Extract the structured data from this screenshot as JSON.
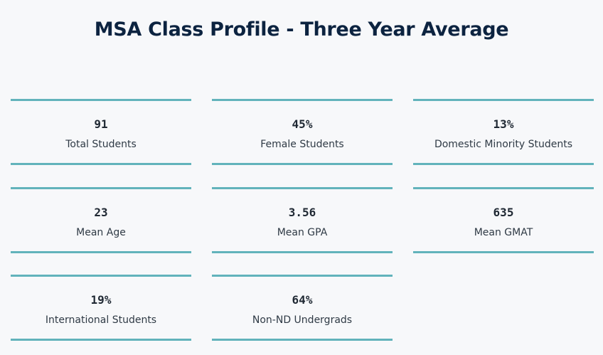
{
  "page": {
    "title": "MSA Class Profile - Three Year Average"
  },
  "stats": [
    {
      "value": "91",
      "label": "Total Students"
    },
    {
      "value": "45%",
      "label": "Female Students"
    },
    {
      "value": "13%",
      "label": "Domestic Minority Students"
    },
    {
      "value": "23",
      "label": "Mean Age"
    },
    {
      "value": "3.56",
      "label": "Mean GPA"
    },
    {
      "value": "635",
      "label": "Mean GMAT"
    },
    {
      "value": "19%",
      "label": "International Students"
    },
    {
      "value": "64%",
      "label": "Non-ND Undergrads"
    }
  ],
  "colors": {
    "accent_line": "#62b3bb",
    "title": "#0c2340",
    "background": "#f7f8fa"
  }
}
